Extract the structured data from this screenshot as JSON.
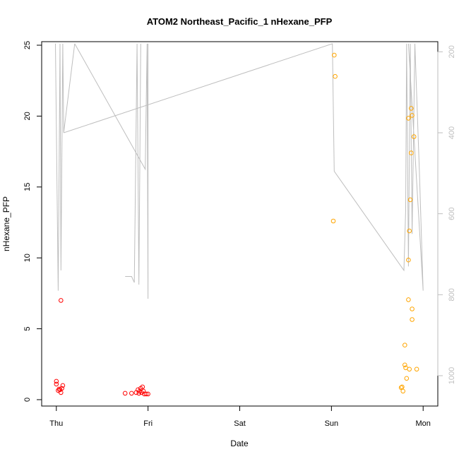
{
  "chart_data": {
    "type": "scatter",
    "title": "ATOM2 Northeast_Pacific_1 nHexane_PFP",
    "xlabel": "Date",
    "ylabel": "nHexane_PFP",
    "x_unit": "days since Thu 00:00",
    "x_ticks": [
      {
        "label": "Thu",
        "value": 0
      },
      {
        "label": "Fri",
        "value": 1
      },
      {
        "label": "Sat",
        "value": 2
      },
      {
        "label": "Sun",
        "value": 3
      },
      {
        "label": "Mon",
        "value": 4
      }
    ],
    "xlim": [
      -0.16,
      4.16
    ],
    "ylim": [
      -0.45,
      25.25
    ],
    "y_ticks": [
      0,
      5,
      10,
      15,
      20,
      25
    ],
    "y2_ticks": [
      200,
      400,
      600,
      800,
      1000
    ],
    "y2lim": [
      1075,
      175
    ],
    "series": [
      {
        "color": "#ff0000",
        "points": [
          [
            0.0,
            1.3
          ],
          [
            0.0,
            1.1
          ],
          [
            0.02,
            0.65
          ],
          [
            0.03,
            0.75
          ],
          [
            0.04,
            0.7
          ],
          [
            0.05,
            0.5
          ],
          [
            0.06,
            0.8
          ],
          [
            0.07,
            1.0
          ],
          [
            0.05,
            7.0
          ],
          [
            0.75,
            0.45
          ],
          [
            0.82,
            0.45
          ],
          [
            0.87,
            0.5
          ],
          [
            0.89,
            0.7
          ],
          [
            0.9,
            0.45
          ],
          [
            0.91,
            0.6
          ],
          [
            0.92,
            0.8
          ],
          [
            0.93,
            0.5
          ],
          [
            0.94,
            0.9
          ],
          [
            0.95,
            0.6
          ],
          [
            0.96,
            0.4
          ],
          [
            0.98,
            0.4
          ],
          [
            1.0,
            0.4
          ]
        ]
      },
      {
        "color": "#ffa500",
        "points": [
          [
            3.03,
            24.3
          ],
          [
            3.04,
            22.8
          ],
          [
            3.02,
            12.6
          ],
          [
            3.76,
            0.85
          ],
          [
            3.77,
            0.9
          ],
          [
            3.78,
            0.6
          ],
          [
            3.8,
            2.45
          ],
          [
            3.81,
            2.25
          ],
          [
            3.8,
            3.85
          ],
          [
            3.82,
            1.5
          ],
          [
            3.85,
            2.15
          ],
          [
            3.84,
            7.05
          ],
          [
            3.84,
            9.85
          ],
          [
            3.85,
            11.9
          ],
          [
            3.84,
            19.85
          ],
          [
            3.86,
            14.1
          ],
          [
            3.87,
            17.4
          ],
          [
            3.88,
            20.05
          ],
          [
            3.87,
            20.55
          ],
          [
            3.88,
            6.4
          ],
          [
            3.88,
            5.65
          ],
          [
            3.9,
            18.55
          ],
          [
            3.93,
            2.15
          ]
        ]
      }
    ],
    "secondary_line": {
      "color": "#bebebe",
      "axis": "right",
      "segments": [
        [
          [
            -0.01,
            180
          ],
          [
            0.02,
            790
          ],
          [
            0.04,
            180
          ],
          [
            0.05,
            740
          ],
          [
            0.07,
            180
          ],
          [
            0.08,
            400
          ],
          [
            0.2,
            180
          ]
        ],
        [
          [
            0.2,
            180
          ],
          [
            0.97,
            490
          ],
          [
            0.99,
            180
          ],
          [
            1.0,
            810
          ],
          [
            1.0,
            180
          ]
        ],
        [
          [
            0.08,
            400
          ],
          [
            3.01,
            180
          ],
          [
            3.03,
            495
          ],
          [
            3.79,
            740
          ],
          [
            3.81,
            590
          ],
          [
            3.82,
            180
          ],
          [
            3.84,
            730
          ],
          [
            3.86,
            180
          ],
          [
            3.88,
            650
          ],
          [
            3.91,
            180
          ],
          [
            3.96,
            500
          ],
          [
            4.0,
            790
          ],
          [
            3.84,
            180
          ]
        ],
        [
          [
            0.75,
            755
          ],
          [
            0.82,
            755
          ],
          [
            0.85,
            770
          ],
          [
            0.88,
            180
          ],
          [
            0.9,
            775
          ],
          [
            0.92,
            180
          ]
        ]
      ]
    }
  }
}
